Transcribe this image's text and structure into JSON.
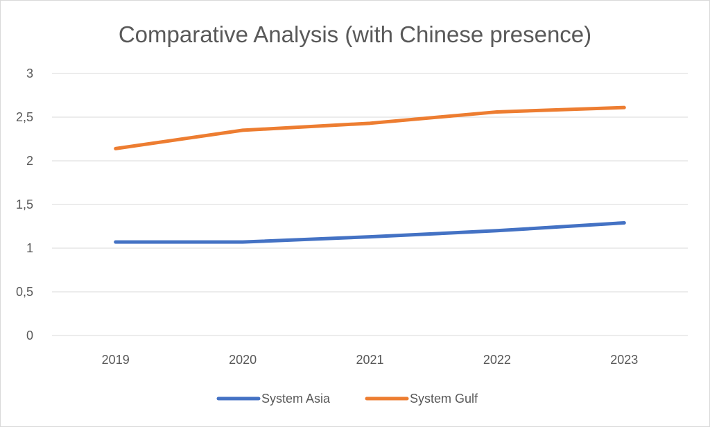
{
  "chart_data": {
    "type": "line",
    "title": "Comparative Analysis (with Chinese presence)",
    "xlabel": "",
    "ylabel": "",
    "categories": [
      "2019",
      "2020",
      "2021",
      "2022",
      "2023"
    ],
    "ylim": [
      0,
      3
    ],
    "yticks": [
      "0",
      "0,5",
      "1",
      "1,5",
      "2",
      "2,5",
      "3"
    ],
    "ytick_values": [
      0,
      0.5,
      1,
      1.5,
      2,
      2.5,
      3
    ],
    "grid": true,
    "legend_position": "bottom",
    "series": [
      {
        "name": "System Asia",
        "color": "#4472c4",
        "values": [
          1.07,
          1.07,
          1.13,
          1.2,
          1.29
        ]
      },
      {
        "name": "System Gulf",
        "color": "#ed7d31",
        "values": [
          2.14,
          2.35,
          2.43,
          2.56,
          2.61
        ]
      }
    ]
  }
}
